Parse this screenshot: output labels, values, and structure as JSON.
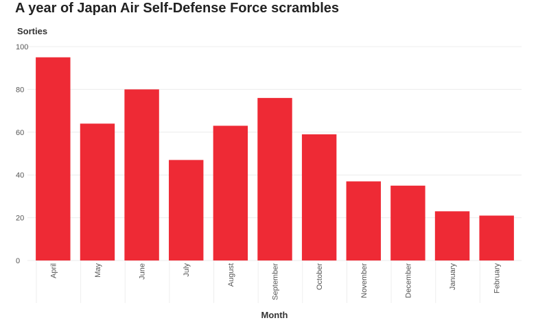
{
  "chart_data": {
    "type": "bar",
    "title": "A year of Japan Air Self-Defense Force scrambles",
    "ylabel": "Sorties",
    "xlabel": "Month",
    "categories": [
      "April",
      "May",
      "June",
      "July",
      "August",
      "September",
      "October",
      "November",
      "December",
      "January",
      "February"
    ],
    "values": [
      95,
      64,
      80,
      47,
      63,
      76,
      59,
      37,
      35,
      23,
      21
    ],
    "ylim": [
      0,
      100
    ],
    "yticks": [
      0,
      20,
      40,
      60,
      80,
      100
    ],
    "grid": true,
    "bar_color": "#ee2a35",
    "gridline_color": "#ececec"
  }
}
